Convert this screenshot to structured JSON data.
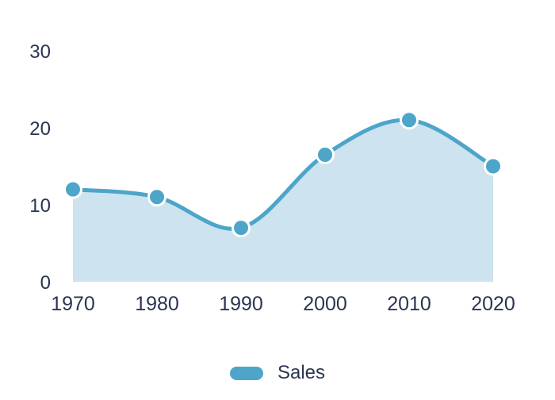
{
  "chart_data": {
    "type": "area",
    "title": "",
    "xlabel": "",
    "ylabel": "",
    "x": [
      1970,
      1980,
      1990,
      2000,
      2010,
      2020
    ],
    "series": [
      {
        "name": "Sales",
        "values": [
          12,
          11,
          7,
          16.5,
          21,
          15
        ]
      }
    ],
    "yticks": [
      0,
      10,
      20,
      30
    ],
    "ylim": [
      0,
      33
    ],
    "grid": false,
    "axis_lines": false,
    "legend_position": "bottom",
    "curve": "smooth",
    "colors": {
      "line": "#4DA5C9",
      "fill": "#CDE3F0",
      "marker": "#4DA5C9",
      "marker_stroke": "#FFFFFF",
      "text": "#2B3551",
      "background": "#FFFFFF"
    }
  },
  "legend": {
    "items": [
      {
        "label": "Sales",
        "color": "#4DA5C9"
      }
    ]
  }
}
